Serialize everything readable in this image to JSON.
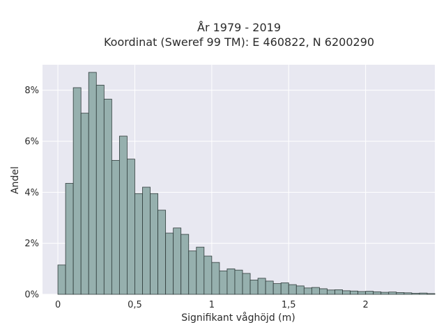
{
  "chart_data": {
    "type": "bar",
    "title_line1": "År 1979 - 2019",
    "title_line2": "Koordinat (Sweref 99 TM): E 460822, N 6200290",
    "xlabel": "Signifikant våghöjd (m)",
    "ylabel": "Andel",
    "bin_width": 0.05,
    "x_start": 0.0,
    "xlim": [
      -0.1,
      2.45
    ],
    "ylim": [
      0,
      9.0
    ],
    "x_ticks": [
      {
        "value": 0,
        "label": "0"
      },
      {
        "value": 0.5,
        "label": "0,5"
      },
      {
        "value": 1,
        "label": "1"
      },
      {
        "value": 1.5,
        "label": "1,5"
      },
      {
        "value": 2,
        "label": "2"
      }
    ],
    "y_ticks": [
      {
        "value": 0,
        "label": "0%"
      },
      {
        "value": 2,
        "label": "2%"
      },
      {
        "value": 4,
        "label": "4%"
      },
      {
        "value": 6,
        "label": "6%"
      },
      {
        "value": 8,
        "label": "8%"
      }
    ],
    "values": [
      1.15,
      4.35,
      8.1,
      7.1,
      8.7,
      8.2,
      7.65,
      5.25,
      6.2,
      5.3,
      3.95,
      4.2,
      3.95,
      3.3,
      2.4,
      2.6,
      2.35,
      1.7,
      1.85,
      1.5,
      1.25,
      0.92,
      1.0,
      0.95,
      0.82,
      0.56,
      0.63,
      0.52,
      0.42,
      0.45,
      0.38,
      0.33,
      0.25,
      0.27,
      0.22,
      0.17,
      0.18,
      0.14,
      0.13,
      0.11,
      0.12,
      0.1,
      0.08,
      0.09,
      0.07,
      0.06,
      0.04,
      0.05,
      0.03
    ],
    "grid": true,
    "colors": {
      "plot_bg": "#e8e8f1",
      "grid": "#ffffff",
      "bar_fill": "#96b0ae",
      "bar_stroke": "#2f3b3a"
    }
  }
}
